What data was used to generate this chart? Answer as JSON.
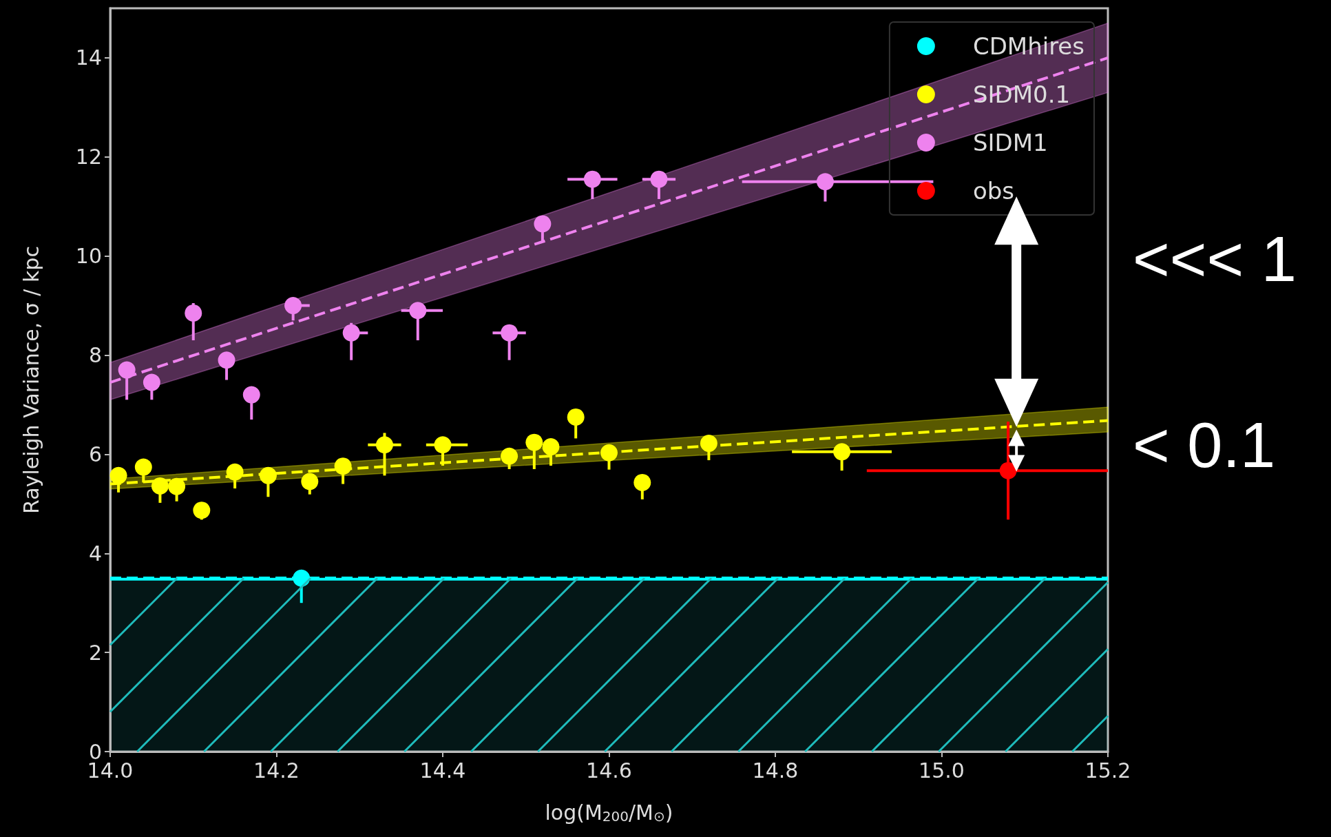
{
  "chart_data": {
    "type": "scatter",
    "xlabel": "log(M$_{200}$/M$_{⊙}$)",
    "ylabel": "Rayleigh Variance, σ / kpc",
    "xlim": [
      14.0,
      15.2
    ],
    "xticks": [
      {
        "value": 14,
        "label": "14.0"
      },
      {
        "value": 14.2,
        "label": "14.2"
      },
      {
        "value": 14.4,
        "label": "14.4"
      },
      {
        "value": 14.6,
        "label": "14.6"
      },
      {
        "value": 14.8,
        "label": "14.8"
      },
      {
        "value": 15,
        "label": "15.0"
      },
      {
        "value": 15.2,
        "label": "15.2"
      }
    ],
    "ylim": [
      0,
      15
    ],
    "yticks": [
      0,
      2,
      4,
      6,
      8,
      10,
      12,
      14
    ],
    "grid": false,
    "legend": "top right",
    "marker": "circle",
    "annotations": [
      "<<< 1",
      "< 0.1"
    ],
    "ref_lines": [
      {
        "axis": "y",
        "value": 3.52,
        "color": "#00ffff",
        "line_style": "dashed"
      }
    ],
    "bands": [
      {
        "axis": "y",
        "from": 0,
        "to": 3.5,
        "color": "#1fbcbc"
      }
    ],
    "series": [
      {
        "name": "CDMhires",
        "color": "#00ffff",
        "x": [
          14.23
        ],
        "values": [
          3.5
        ],
        "errors": [
          [
            3.0,
            3.5
          ]
        ]
      },
      {
        "name": "SIDM0.1",
        "color": "#ffff00",
        "x": [
          14.01,
          14.04,
          14.06,
          14.08,
          14.11,
          14.15,
          14.19,
          14.24,
          14.28,
          14.33,
          14.4,
          14.48,
          14.51,
          14.53,
          14.56,
          14.6,
          14.64,
          14.72,
          14.88
        ],
        "values": [
          5.57,
          5.74,
          5.36,
          5.35,
          4.87,
          5.64,
          5.57,
          5.45,
          5.76,
          6.19,
          6.19,
          5.96,
          6.24,
          6.15,
          6.75,
          6.03,
          5.43,
          6.22,
          6.05
        ],
        "errors": [
          [
            5.23,
            5.57
          ],
          [
            5.43,
            5.74
          ],
          [
            5.02,
            5.36
          ],
          [
            5.05,
            5.35
          ],
          [
            4.68,
            4.87
          ],
          [
            5.31,
            5.64
          ],
          [
            5.14,
            5.57
          ],
          [
            5.19,
            5.45
          ],
          [
            5.4,
            5.76
          ],
          [
            5.57,
            6.43
          ],
          [
            5.77,
            6.19
          ],
          [
            5.7,
            5.96
          ],
          [
            5.7,
            6.24
          ],
          [
            5.77,
            6.15
          ],
          [
            6.32,
            6.75
          ],
          [
            5.69,
            6.03
          ],
          [
            5.09,
            5.43
          ],
          [
            5.88,
            6.22
          ],
          [
            5.67,
            6.05
          ]
        ],
        "xerrors": [
          null,
          null,
          null,
          null,
          null,
          null,
          null,
          null,
          null,
          [
            14.31,
            14.35
          ],
          [
            14.38,
            14.43
          ],
          null,
          null,
          null,
          null,
          null,
          null,
          null,
          [
            14.82,
            14.94
          ]
        ]
      },
      {
        "name": "SIDM1",
        "color": "#ee82ee",
        "x": [
          14.02,
          14.05,
          14.1,
          14.14,
          14.17,
          14.22,
          14.29,
          14.37,
          14.48,
          14.52,
          14.58,
          14.66,
          14.86
        ],
        "values": [
          7.7,
          7.45,
          8.85,
          7.9,
          7.2,
          9.0,
          8.45,
          8.9,
          8.45,
          10.65,
          11.55,
          11.55,
          11.5
        ],
        "errors": [
          [
            7.1,
            7.7
          ],
          [
            7.1,
            7.45
          ],
          [
            8.3,
            9.05
          ],
          [
            7.5,
            7.9
          ],
          [
            6.7,
            7.2
          ],
          [
            8.7,
            9.0
          ],
          [
            7.9,
            8.65
          ],
          [
            8.3,
            8.9
          ],
          [
            7.9,
            8.45
          ],
          [
            10.3,
            10.65
          ],
          [
            11.15,
            11.55
          ],
          [
            11.15,
            11.55
          ],
          [
            11.1,
            11.5
          ]
        ],
        "xerrors": [
          null,
          null,
          null,
          null,
          null,
          [
            14.21,
            14.24
          ],
          [
            14.28,
            14.31
          ],
          [
            14.35,
            14.4
          ],
          [
            14.46,
            14.5
          ],
          null,
          [
            14.55,
            14.61
          ],
          [
            14.64,
            14.68
          ],
          [
            14.76,
            14.99
          ]
        ]
      },
      {
        "name": "obs",
        "color": "#ff0000",
        "x": [
          15.08
        ],
        "values": [
          5.67
        ],
        "errors": [
          [
            4.68,
            6.66
          ]
        ],
        "xerrors": [
          [
            14.91,
            15.2
          ]
        ]
      },
      {
        "type": "line",
        "color": "#00ffff",
        "line_style": "solid",
        "marker": "none",
        "x": [
          14.0,
          15.2
        ],
        "values": [
          3.48,
          3.48
        ]
      },
      {
        "type": "line",
        "color": "#ffff00",
        "line_style": "dashed",
        "marker": "none",
        "x": [
          14.0,
          15.2
        ],
        "values": [
          5.4,
          6.68
        ],
        "lower": [
          5.3,
          6.45
        ],
        "upper": [
          5.5,
          6.95
        ]
      },
      {
        "type": "line",
        "color": "#ee82ee",
        "line_style": "dashed",
        "marker": "none",
        "x": [
          14.0,
          15.2
        ],
        "values": [
          7.45,
          14.0
        ],
        "lower": [
          7.1,
          13.3
        ],
        "upper": [
          7.85,
          14.7
        ]
      }
    ]
  }
}
